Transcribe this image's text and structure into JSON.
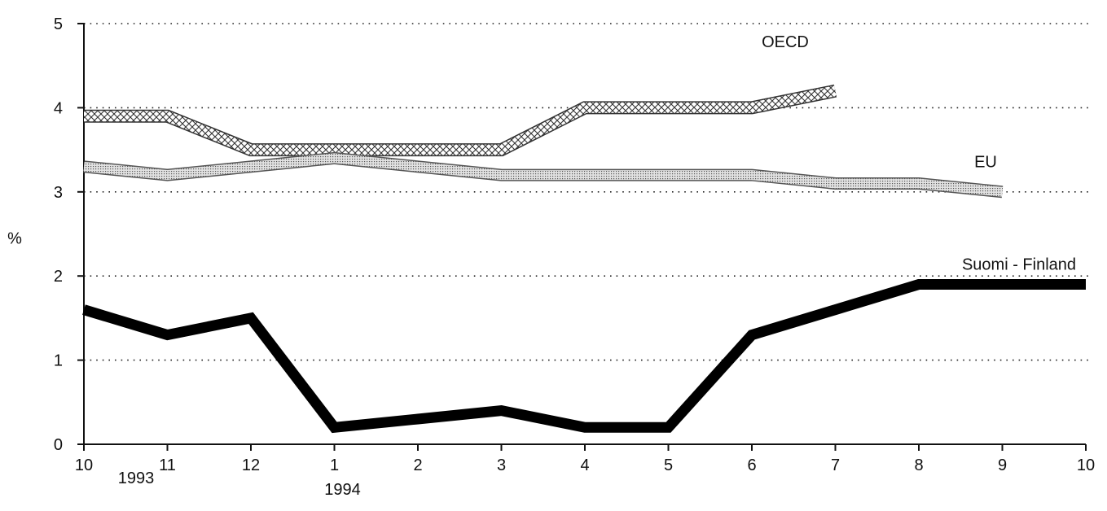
{
  "chart_data": {
    "type": "line",
    "title": "",
    "xlabel": "",
    "ylabel": "%",
    "ylim": [
      0,
      5
    ],
    "y_ticks": [
      "0",
      "1",
      "2",
      "3",
      "4",
      "5"
    ],
    "categories": [
      "10",
      "11",
      "12",
      "1",
      "2",
      "3",
      "4",
      "5",
      "6",
      "7",
      "8",
      "9",
      "10"
    ],
    "year_labels": [
      {
        "text": "1993",
        "category_index": 0
      },
      {
        "text": "1994",
        "category_index": 3
      }
    ],
    "grid": "horizontal dotted",
    "series": [
      {
        "name": "OECD",
        "style": "crosshatch",
        "color": "#555555",
        "values": [
          3.9,
          3.9,
          3.5,
          3.5,
          3.5,
          3.5,
          4.0,
          4.0,
          4.0,
          4.2,
          null,
          null,
          null
        ]
      },
      {
        "name": "EU",
        "style": "stippled",
        "color": "#999999",
        "values": [
          3.3,
          3.2,
          3.3,
          3.4,
          3.3,
          3.2,
          3.2,
          3.2,
          3.2,
          3.1,
          3.1,
          3.0,
          null
        ]
      },
      {
        "name": "Suomi - Finland",
        "style": "solid",
        "color": "#000000",
        "values": [
          1.6,
          1.3,
          1.5,
          0.2,
          0.3,
          0.4,
          0.2,
          0.2,
          1.3,
          1.6,
          1.9,
          1.9,
          1.9
        ]
      }
    ]
  }
}
